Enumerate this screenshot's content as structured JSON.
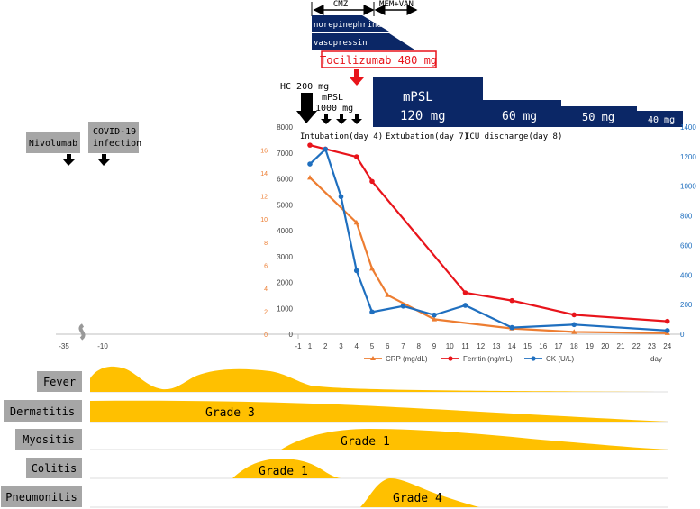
{
  "colors": {
    "navy": "#0b2766",
    "crp": "#ed7d31",
    "ferritin": "#e8141b",
    "ck": "#1f6fbf",
    "grade": "#ffc000",
    "gray_box": "#a6a6a6",
    "red_box": "#e8141b",
    "arrow": "#000000"
  },
  "top": {
    "cmz": "CMZ",
    "mem_van": "MEM+VAN",
    "norepinephrine": "norepinephrine",
    "vasopressin": "vasopressin",
    "tocilizumab": "Tocilizumab 480 mg",
    "hc": "HC 200 mg",
    "mpsl_small_1": "mPSL",
    "mpsl_small_2": "1000 mg",
    "mpsl_big": "mPSL",
    "dose_120": "120 mg",
    "dose_60": "60 mg",
    "dose_50": "50 mg",
    "dose_40": "40 mg",
    "intubation": "Intubation(day 4)",
    "extubation": "Extubation(day 7)",
    "icu_discharge": "ICU discharge(day 8)"
  },
  "left_boxes": {
    "nivolumab": "Nivolumab",
    "covid_1": "COVID-19",
    "covid_2": "infection"
  },
  "chart_data": {
    "type": "line",
    "x_axis_ticks": [
      "-35",
      "-10",
      "-1",
      "1",
      "2",
      "3",
      "4",
      "5",
      "6",
      "7",
      "8",
      "9",
      "10",
      "11",
      "12",
      "13",
      "14",
      "15",
      "16",
      "17",
      "18",
      "19",
      "20",
      "21",
      "22",
      "23",
      "24"
    ],
    "x_unit_label": "day",
    "left_axis_black": {
      "ticks": [
        "0",
        "1000",
        "2000",
        "3000",
        "4000",
        "5000",
        "6000",
        "7000",
        "8000"
      ],
      "range": [
        0,
        8000
      ]
    },
    "left_axis_orange": {
      "ticks": [
        "0",
        "2",
        "4",
        "6",
        "8",
        "10",
        "12",
        "14",
        "16"
      ],
      "range": [
        0,
        18
      ]
    },
    "right_axis": {
      "ticks": [
        "0",
        "200",
        "400",
        "600",
        "800",
        "1000",
        "1200",
        "1400"
      ],
      "range": [
        0,
        1400
      ]
    },
    "series": [
      {
        "name": "CRP (mg/dL)",
        "axis": "orange",
        "color": "#ed7d31",
        "marker": "triangle",
        "x": [
          1,
          4,
          5,
          6,
          9,
          14,
          18,
          24
        ],
        "y": [
          13.6,
          9.7,
          5.7,
          3.4,
          1.3,
          0.5,
          0.2,
          0.1
        ]
      },
      {
        "name": "Ferritin (ng/mL)",
        "axis": "black",
        "color": "#e8141b",
        "marker": "circle",
        "x": [
          1,
          2,
          4,
          5,
          11,
          14,
          18,
          24
        ],
        "y": [
          7300,
          7150,
          6850,
          5900,
          1600,
          1300,
          750,
          500
        ]
      },
      {
        "name": "CK (U/L)",
        "axis": "right",
        "color": "#1f6fbf",
        "marker": "circle",
        "x": [
          1,
          2,
          3,
          4,
          5,
          7,
          9,
          11,
          14,
          18,
          24
        ],
        "y": [
          1150,
          1250,
          930,
          430,
          150,
          190,
          130,
          195,
          45,
          65,
          25
        ]
      }
    ]
  },
  "symptoms": {
    "fever": "Fever",
    "dermatitis": "Dermatitis",
    "myositis": "Myositis",
    "colitis": "Colitis",
    "pneumonitis": "Pneumonitis",
    "grade3": "Grade 3",
    "grade1_myositis": "Grade 1",
    "grade1_colitis": "Grade 1",
    "grade4": "Grade 4"
  }
}
